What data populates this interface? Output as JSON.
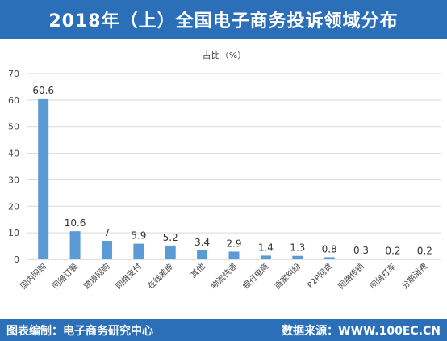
{
  "header": {
    "title": "2018年（上）全国电子商务投诉领域分布"
  },
  "footer": {
    "left_text": "图表编制：电子商务研究中心",
    "right_text": "数据来源：WWW.100EC.CN"
  },
  "colors": {
    "header_bg": "#2a6fb7",
    "bar": "#5b9bd5",
    "grid": "#d9d9d9"
  },
  "chart_data": {
    "type": "bar",
    "title": "2018年（上）全国电子商务投诉领域分布",
    "subtitle": "占比（%）",
    "categories": [
      "国内网购",
      "网络订餐",
      "跨境网购",
      "网络支付",
      "在线差旅",
      "其他",
      "物流快递",
      "银行电商",
      "商家纠纷",
      "P2P网贷",
      "网络传销",
      "网络打车",
      "分期消费"
    ],
    "values": [
      60.6,
      10.6,
      7,
      5.9,
      5.2,
      3.4,
      2.9,
      1.4,
      1.3,
      0.8,
      0.3,
      0.2,
      0.2
    ],
    "value_labels": [
      "60.6",
      "10.6",
      "7",
      "5.9",
      "5.2",
      "3.4",
      "2.9",
      "1.4",
      "1.3",
      "0.8",
      "0.3",
      "0.2",
      "0.2"
    ],
    "ylim": [
      0,
      70
    ],
    "yticks": [
      "0",
      "10",
      "20",
      "30",
      "40",
      "50",
      "60",
      "70"
    ],
    "grid": true,
    "legend": "none"
  }
}
